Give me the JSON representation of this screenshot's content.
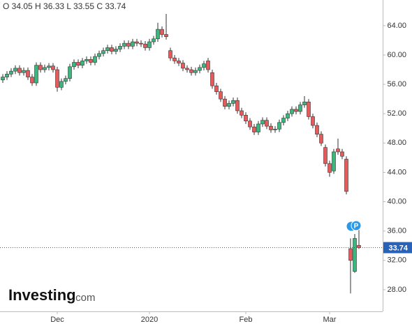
{
  "chart_data": {
    "type": "candlestick",
    "ohlc_header": "O 34.05  H 36.33  L 33.55  C 33.74",
    "brand": "Investing",
    "brand_suffix": ".com",
    "annotations": [
      "P"
    ],
    "last_price": {
      "value": 33.74,
      "label": "33.74"
    },
    "up_color": "#3bb77e",
    "down_color": "#e55b5b",
    "open": [
      56.6,
      57.0,
      57.4,
      57.8,
      58.2,
      57.6,
      57.9,
      57.0,
      56.2,
      58.6,
      58.0,
      58.3,
      58.5,
      58.0,
      55.6,
      56.4,
      56.8,
      58.4,
      59.0,
      58.6,
      59.2,
      59.4,
      59.0,
      59.8,
      60.2,
      60.6,
      61.0,
      60.5,
      60.8,
      61.2,
      61.6,
      61.2,
      61.8,
      61.6,
      61.5,
      61.0,
      61.8,
      62.2,
      63.5,
      62.8,
      60.6,
      59.6,
      59.2,
      58.9,
      58.2,
      58.0,
      57.6,
      57.9,
      58.3,
      59.2,
      57.6,
      55.8,
      55.0,
      54.0,
      53.0,
      53.4,
      53.8,
      52.4,
      51.8,
      51.0,
      50.2,
      49.5,
      50.6,
      51.1,
      50.3,
      49.8,
      49.9,
      50.8,
      51.4,
      52.0,
      52.6,
      52.3,
      53.2,
      53.6,
      51.6,
      50.4,
      49.2,
      47.4,
      45.2,
      44.2,
      47.2,
      46.8,
      45.8,
      33.6,
      30.5,
      34.05
    ],
    "high": [
      57.4,
      57.8,
      58.2,
      58.6,
      58.6,
      58.3,
      58.3,
      57.4,
      59.0,
      59.0,
      58.7,
      58.9,
      58.9,
      58.4,
      56.8,
      57.2,
      58.8,
      59.4,
      59.4,
      59.6,
      59.8,
      59.8,
      60.2,
      60.6,
      61.0,
      61.4,
      61.4,
      61.2,
      61.6,
      62.0,
      62.0,
      62.2,
      62.2,
      62.0,
      61.9,
      62.2,
      62.6,
      64.4,
      63.9,
      65.6,
      61.0,
      60.0,
      59.6,
      59.3,
      58.6,
      58.4,
      58.3,
      58.7,
      59.2,
      59.6,
      58.0,
      56.2,
      55.4,
      54.4,
      53.8,
      54.2,
      54.2,
      52.8,
      52.2,
      51.4,
      50.6,
      51.0,
      51.5,
      51.5,
      50.7,
      50.3,
      51.2,
      51.8,
      52.4,
      53.0,
      53.0,
      53.6,
      54.4,
      54.0,
      52.0,
      50.8,
      49.6,
      47.8,
      45.6,
      47.2,
      48.6,
      47.2,
      46.2,
      35.0,
      35.6,
      36.33
    ],
    "low": [
      56.2,
      56.6,
      57.0,
      57.4,
      57.2,
      57.2,
      56.6,
      55.8,
      55.8,
      57.6,
      57.6,
      57.9,
      57.6,
      55.0,
      55.2,
      56.0,
      56.4,
      58.0,
      58.2,
      58.2,
      58.8,
      58.6,
      58.6,
      59.4,
      59.8,
      60.2,
      60.1,
      60.1,
      60.4,
      60.8,
      60.8,
      60.8,
      61.2,
      61.1,
      60.6,
      60.6,
      61.4,
      61.8,
      62.4,
      62.1,
      59.2,
      58.8,
      58.5,
      57.8,
      57.6,
      57.2,
      57.2,
      57.5,
      57.9,
      57.6,
      55.4,
      54.6,
      53.6,
      52.6,
      52.6,
      53.0,
      52.0,
      51.4,
      50.6,
      49.8,
      49.1,
      49.1,
      50.2,
      49.9,
      49.4,
      49.4,
      49.5,
      50.4,
      51.0,
      51.6,
      51.9,
      51.9,
      52.8,
      51.2,
      50.0,
      48.8,
      47.6,
      44.8,
      43.4,
      43.8,
      46.4,
      45.8,
      41.0,
      27.5,
      30.3,
      33.55
    ],
    "close": [
      57.0,
      57.4,
      57.8,
      58.2,
      57.6,
      57.9,
      57.0,
      56.2,
      58.6,
      58.0,
      58.3,
      58.5,
      58.0,
      55.6,
      56.4,
      56.8,
      58.4,
      59.0,
      58.6,
      59.2,
      59.4,
      59.0,
      59.8,
      60.2,
      60.6,
      61.0,
      60.5,
      60.8,
      61.2,
      61.6,
      61.2,
      61.8,
      61.6,
      61.5,
      61.0,
      61.8,
      62.2,
      63.5,
      62.8,
      62.5,
      59.6,
      59.2,
      58.9,
      58.2,
      58.0,
      57.6,
      57.9,
      58.3,
      58.8,
      58.0,
      55.8,
      55.0,
      54.0,
      53.0,
      53.4,
      53.8,
      52.4,
      51.8,
      51.0,
      50.2,
      49.5,
      50.6,
      51.1,
      50.3,
      49.8,
      49.9,
      50.8,
      51.4,
      52.0,
      52.6,
      52.3,
      53.2,
      53.6,
      51.6,
      50.4,
      49.2,
      48.0,
      45.2,
      44.0,
      46.8,
      46.8,
      46.2,
      41.4,
      32.0,
      35.0,
      33.74
    ],
    "xlim": [
      -0.667,
      90.667
    ],
    "xticks": [
      {
        "value": 13,
        "label": "Dec"
      },
      {
        "value": 35,
        "label": "2020"
      },
      {
        "value": 58,
        "label": "Feb"
      },
      {
        "value": 78,
        "label": "Mar"
      }
    ],
    "ylim": [
      25.05,
      67.5
    ],
    "yticks": [
      {
        "value": 28,
        "label": "28.00"
      },
      {
        "value": 32,
        "label": "32.00"
      },
      {
        "value": 36,
        "label": "36.00"
      },
      {
        "value": 40,
        "label": "40.00"
      },
      {
        "value": 44,
        "label": "44.00"
      },
      {
        "value": 48,
        "label": "48.00"
      },
      {
        "value": 52,
        "label": "52.00"
      },
      {
        "value": 56,
        "label": "56.00"
      },
      {
        "value": 60,
        "label": "60.00"
      },
      {
        "value": 64,
        "label": "64.00"
      }
    ]
  }
}
